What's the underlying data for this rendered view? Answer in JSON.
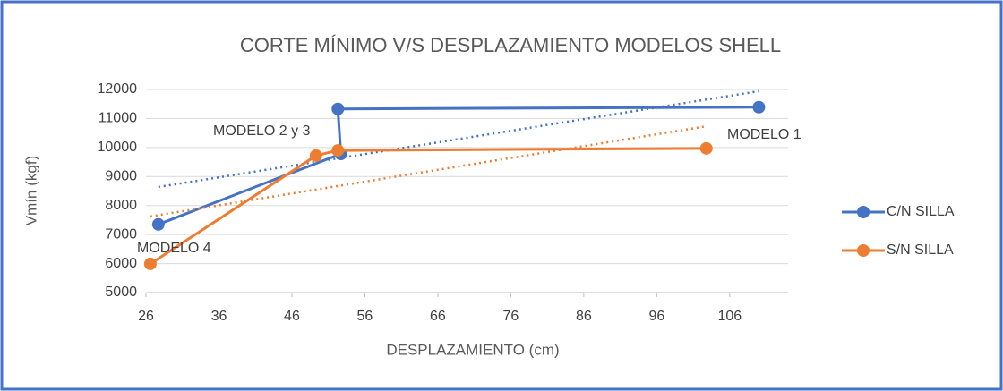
{
  "chart_data": {
    "type": "line",
    "title": "CORTE MÍNIMO V/S DESPLAZAMIENTO MODELOS SHELL",
    "x_label": "DESPLAZAMIENTO (cm)",
    "y_label": "Vmín (kgf)",
    "xlim": [
      26,
      114
    ],
    "xticks": [
      26,
      36,
      46,
      56,
      66,
      76,
      86,
      96,
      106
    ],
    "ylim": [
      5000,
      12000
    ],
    "yticks": [
      5000,
      6000,
      7000,
      8000,
      9000,
      10000,
      11000,
      12000
    ],
    "grid": true,
    "trendline": "linear",
    "legend": "right",
    "series": [
      {
        "name": "C/N SILLA",
        "color": "#4472c4",
        "x": [
          27.7,
          52.7,
          52.3,
          110.0
        ],
        "values": [
          7350,
          9780,
          11330,
          11390
        ]
      },
      {
        "name": "S/N SILLA",
        "color": "#ed7d31",
        "x": [
          26.6,
          49.3,
          52.3,
          102.8
        ],
        "values": [
          5990,
          9720,
          9900,
          9970
        ]
      }
    ],
    "annotations": [
      "MODELO 1",
      "MODELO 2 y 3",
      "MODELO 4"
    ]
  }
}
